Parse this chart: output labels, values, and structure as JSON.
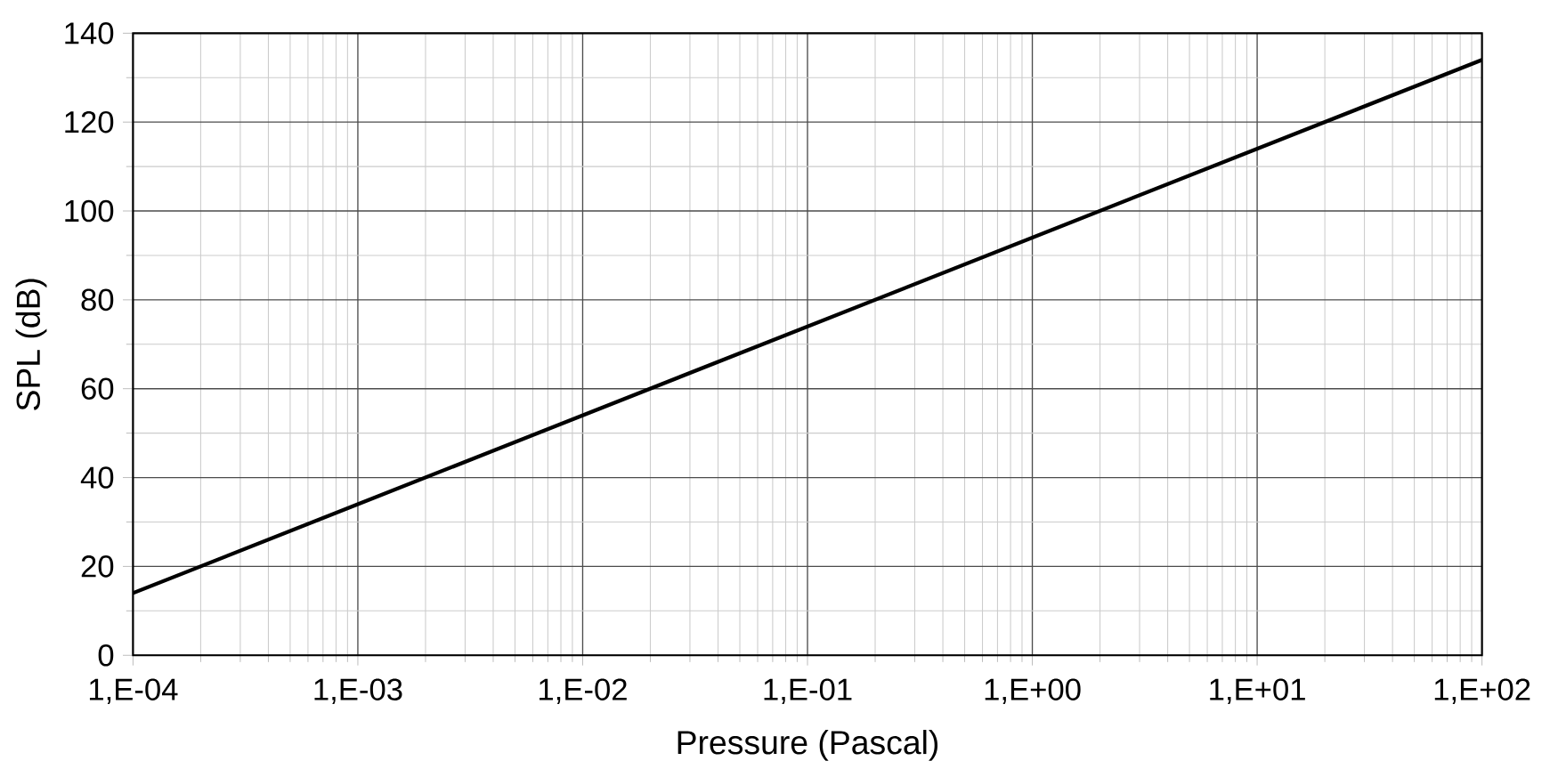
{
  "chart_data": {
    "type": "line",
    "xlabel": "Pressure (Pascal)",
    "ylabel": "SPL (dB)",
    "grid": true,
    "marker": "none",
    "line_style": "solid",
    "ylim": [
      0,
      140
    ],
    "yticks": [
      0,
      20,
      40,
      60,
      80,
      100,
      120,
      140
    ],
    "categories": [
      "1,E-04",
      "1,E-03",
      "1,E-02",
      "1,E-01",
      "1,E+00",
      "1,E+01",
      "1,E+02"
    ],
    "series": [
      {
        "color": "#000000",
        "values": [
          14,
          34,
          54,
          74,
          94,
          114,
          134
        ]
      }
    ]
  }
}
